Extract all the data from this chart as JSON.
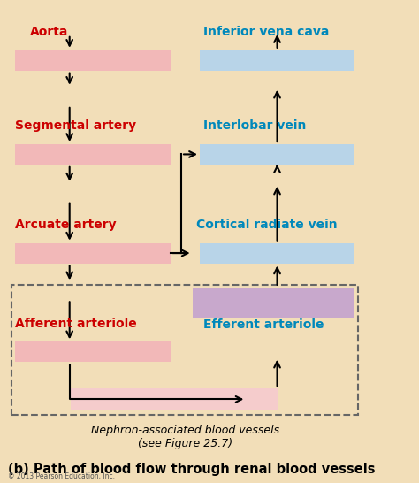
{
  "bg_color": "#f2deb8",
  "title": "(b) Path of blood flow through renal blood vessels",
  "title_fontsize": 10.5,
  "subtitle": "Nephron-associated blood vessels\n(see Figure 25.7)",
  "subtitle_fontsize": 9,
  "copyright": "© 2013 Pearson Education, Inc.",
  "artery_color": "#f2b8b8",
  "artery_color_light": "#f5cccc",
  "vein_color": "#b8d4e8",
  "vein_color_light": "#c8dff0",
  "glomerulus_color": "#c8a8cc",
  "red_label_color": "#cc0000",
  "blue_label_color": "#0088bb",
  "left_labels": [
    "Aorta",
    "Segmental artery",
    "Arcuate artery",
    "Afferent arteriole"
  ],
  "right_labels": [
    "Inferior vena cava",
    "Interlobar vein",
    "Cortical radiate vein",
    "Efferent arteriole"
  ],
  "label_fontsize": 10
}
